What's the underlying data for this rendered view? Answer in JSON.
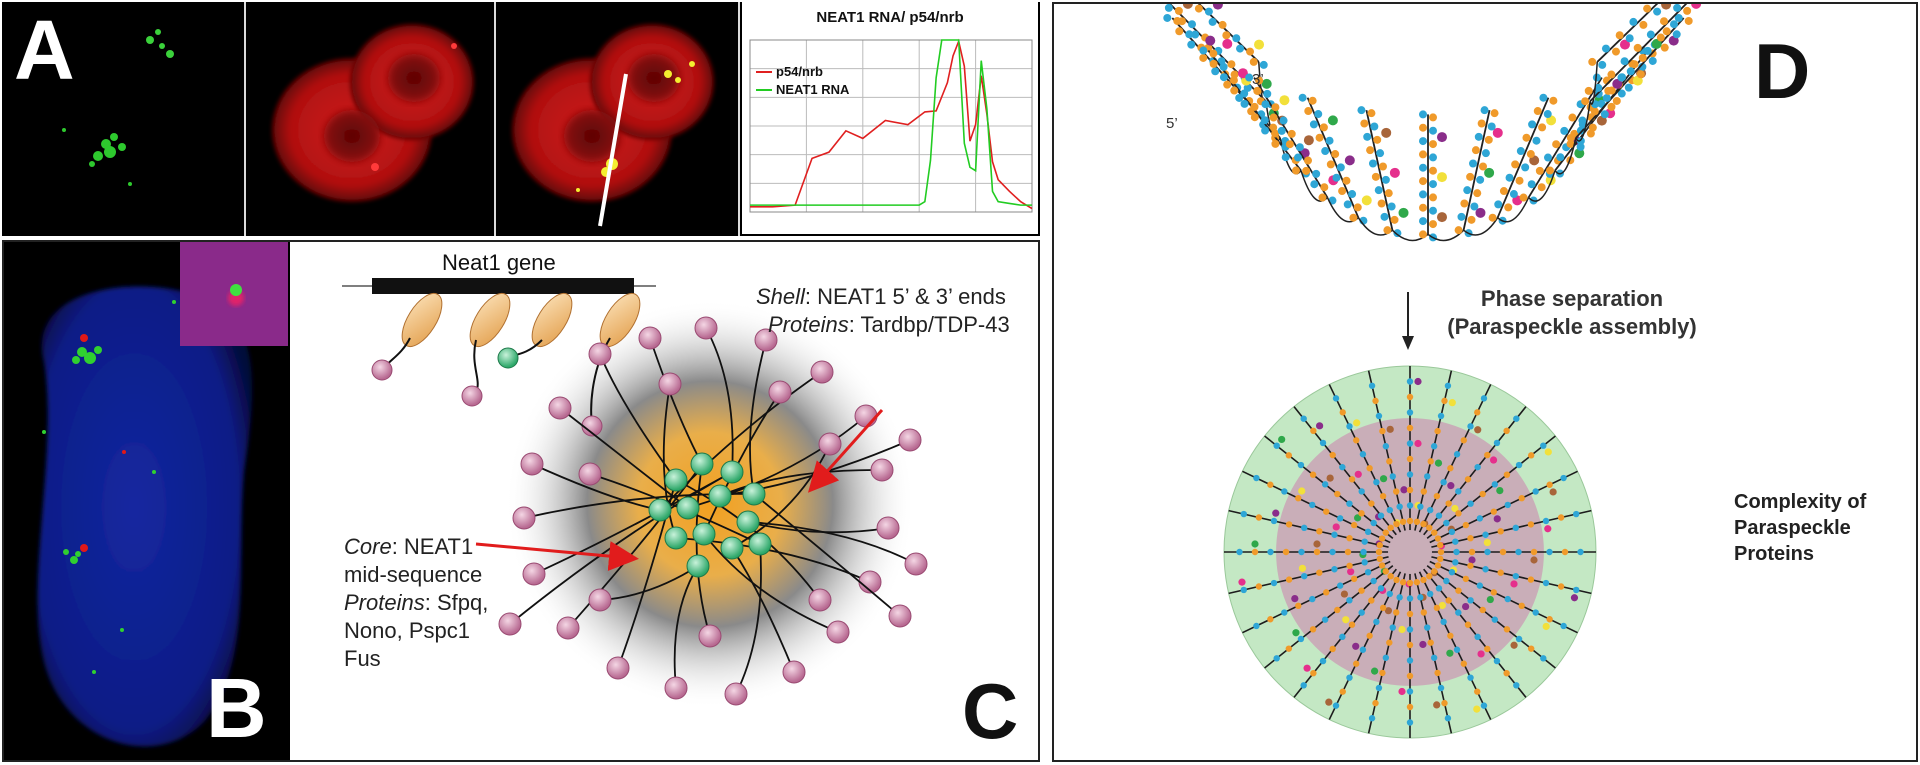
{
  "panels": {
    "a": {
      "letter": "A",
      "chart_data": {
        "type": "line",
        "title": "NEAT1 RNA/ p54/nrb",
        "xlabel": "",
        "ylabel": "",
        "xlim": [
          0,
          100
        ],
        "ylim": [
          0,
          100
        ],
        "grid": true,
        "legend_position": "top-left",
        "series": [
          {
            "name": "p54/nrb",
            "color": "#e02020",
            "x": [
              0,
              8,
              16,
              22,
              28,
              34,
              40,
              48,
              56,
              62,
              66,
              70,
              72,
              74,
              76,
              78,
              80,
              82,
              84,
              86,
              88,
              92,
              96,
              100
            ],
            "y": [
              3,
              3,
              4,
              30,
              36,
              46,
              44,
              52,
              52,
              57,
              60,
              74,
              92,
              98,
              86,
              40,
              52,
              78,
              58,
              28,
              20,
              12,
              6,
              2
            ]
          },
          {
            "name": "NEAT1 RNA",
            "color": "#22cc22",
            "x": [
              0,
              10,
              20,
              30,
              40,
              50,
              60,
              62,
              64,
              66,
              68,
              70,
              72,
              74,
              76,
              78,
              80,
              82,
              84,
              86,
              88,
              92,
              96,
              100
            ],
            "y": [
              4,
              4,
              4,
              4,
              4,
              4,
              4,
              6,
              30,
              78,
              100,
              100,
              100,
              100,
              40,
              26,
              24,
              88,
              60,
              12,
              6,
              5,
              4,
              4
            ]
          }
        ]
      }
    },
    "b": {
      "letter": "B"
    },
    "c": {
      "letter": "C",
      "gene_label": "Neat1 gene",
      "shell_label_italic": "Shell",
      "shell_label_rest": ": NEAT1 5’ & 3’ ends",
      "shell_proteins_italic": "Proteins",
      "shell_proteins_rest": ": Tardbp/TDP-43",
      "core_label_italic": "Core",
      "core_label_rest": ": NEAT1",
      "core_line2": "mid-sequence",
      "core_proteins_italic": "Proteins",
      "core_proteins_rest": ": Sfpq,",
      "core_line4": "Nono, Pspc1",
      "core_line5": "Fus"
    },
    "d": {
      "letter": "D",
      "label_3prime": "3’",
      "label_5prime": "5’",
      "phase_line1": "Phase separation",
      "phase_line2": "(Paraspeckle assembly)",
      "complexity_line1": "Complexity of",
      "complexity_line2": "Paraspeckle",
      "complexity_line3": "Proteins"
    }
  }
}
